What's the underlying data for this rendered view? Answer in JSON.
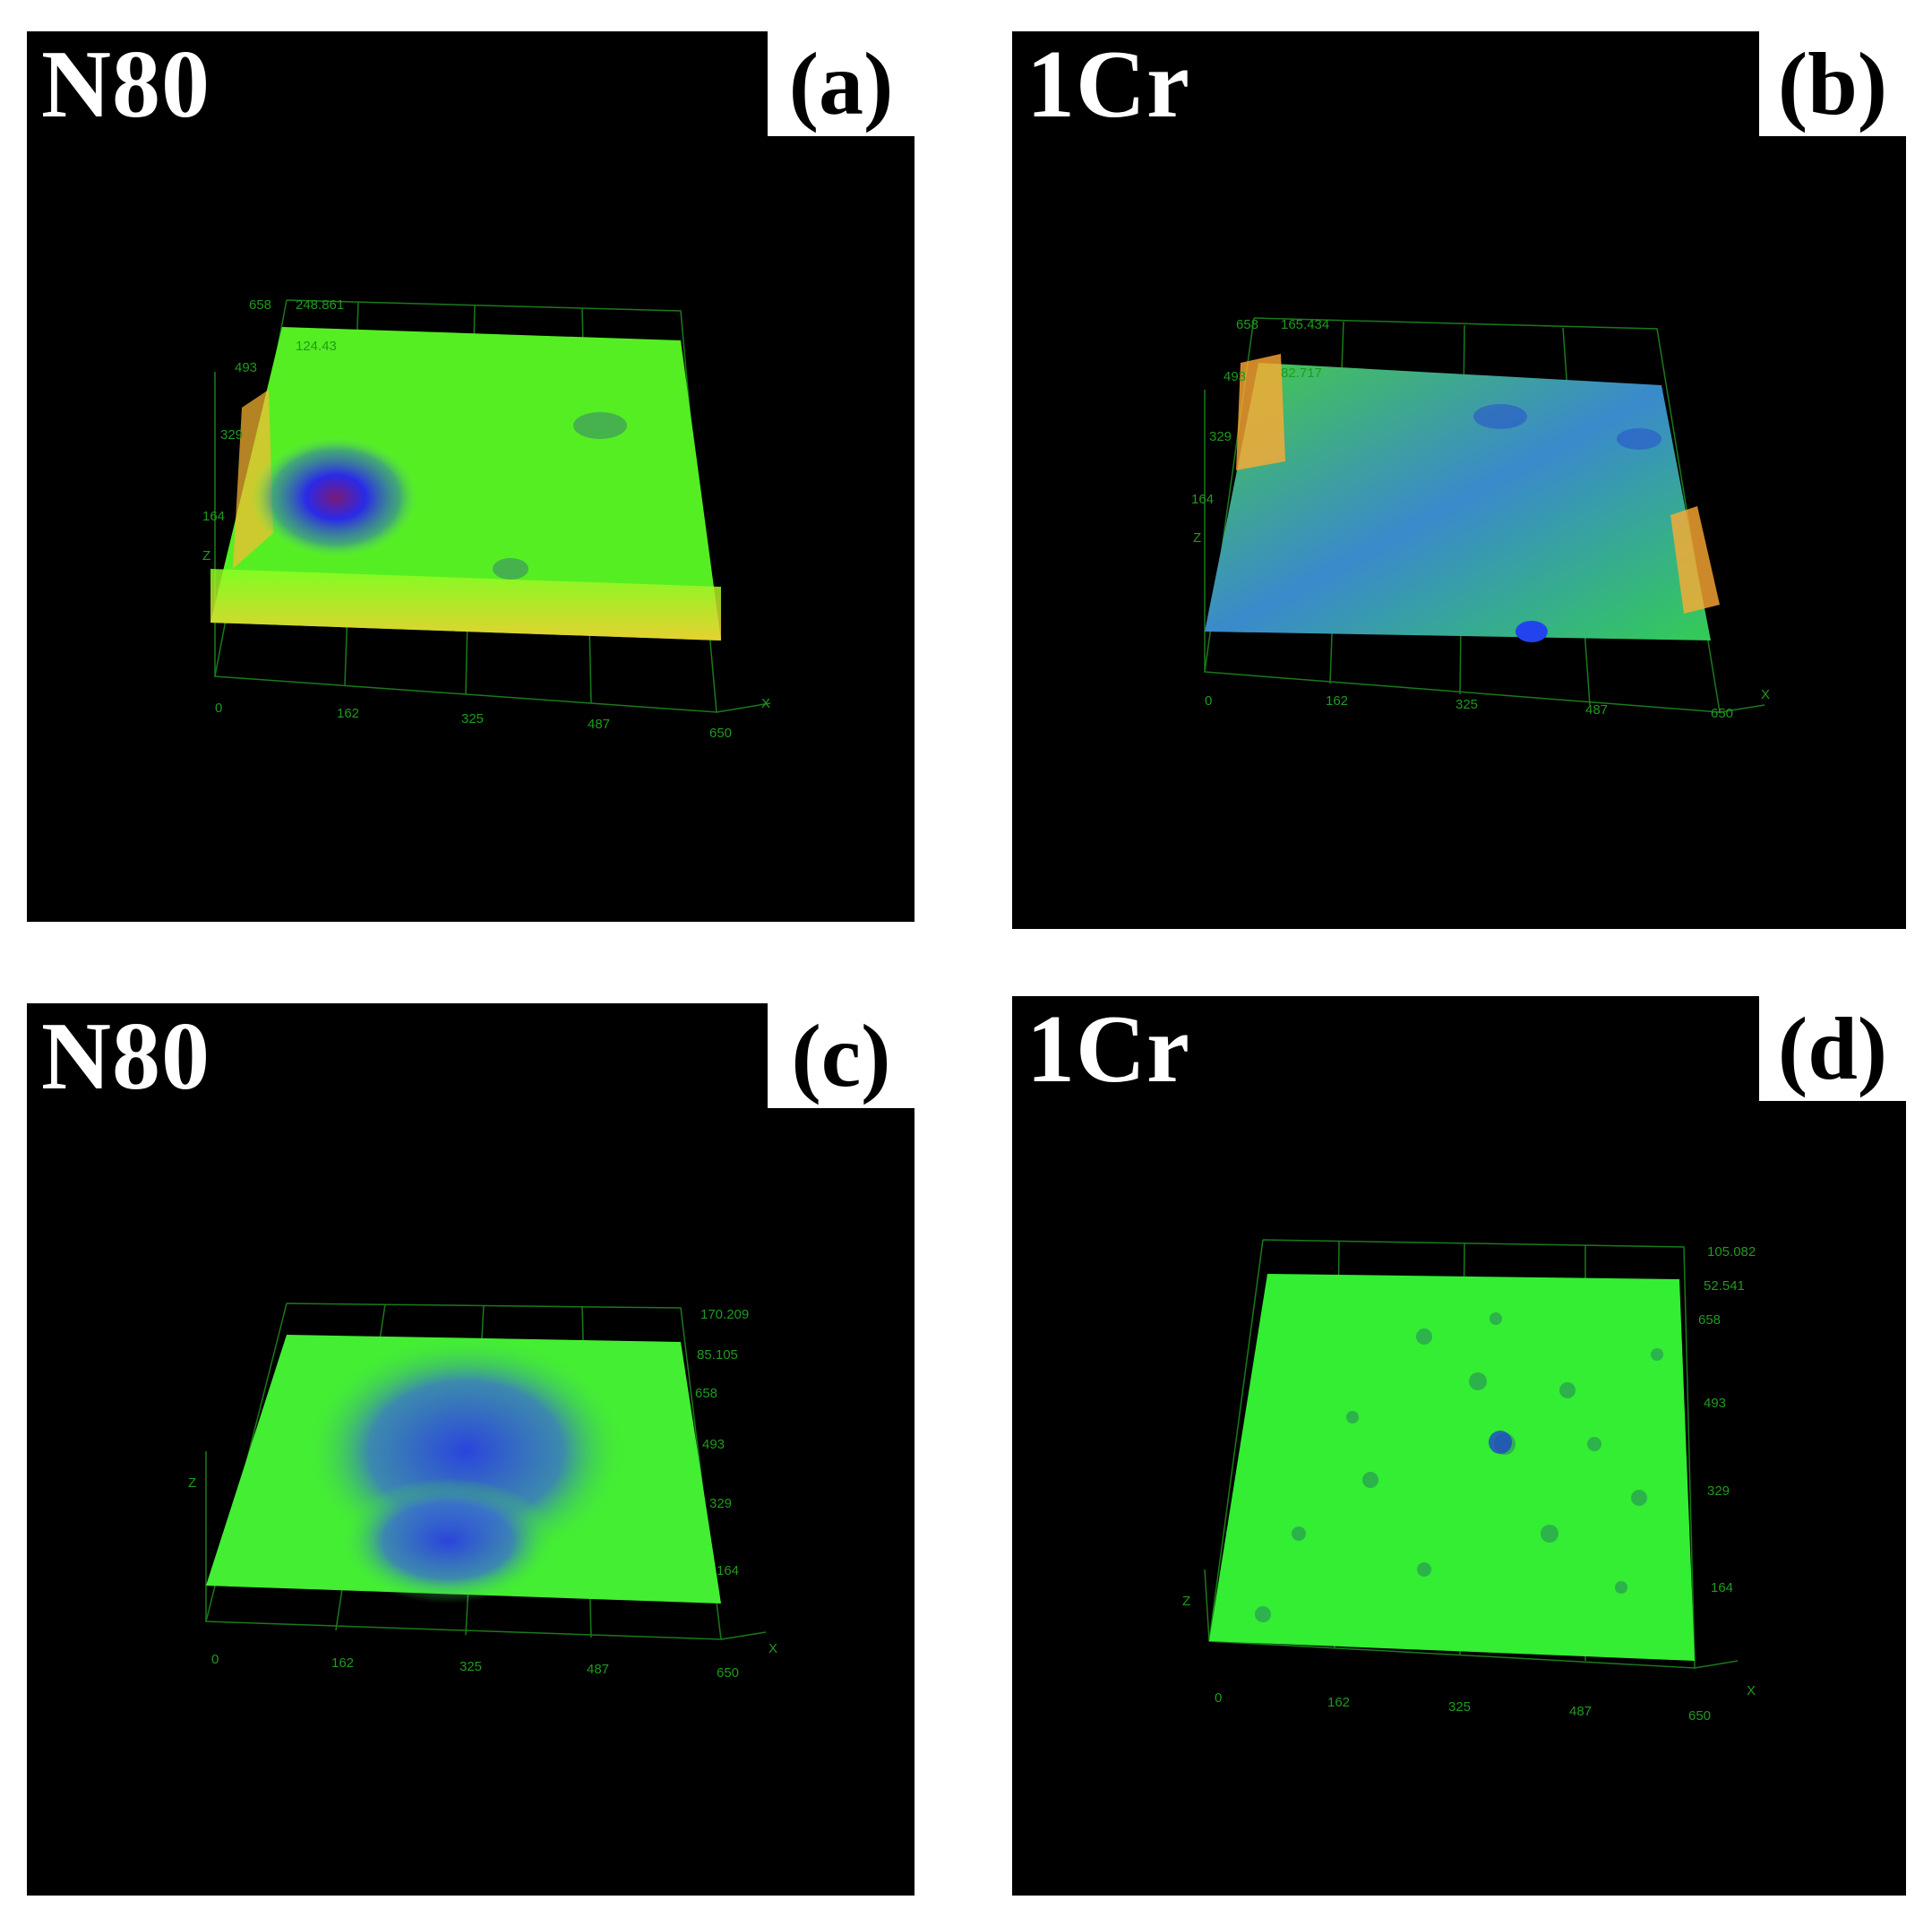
{
  "panels": [
    {
      "id": "a",
      "material": "N80",
      "letter": "(a)",
      "z_max": "248.861",
      "z_mid": "124.43",
      "y_ticks": [
        "658",
        "493",
        "329",
        "164"
      ],
      "x_ticks": [
        "0",
        "162",
        "325",
        "487",
        "650"
      ]
    },
    {
      "id": "b",
      "material": "1Cr",
      "letter": "(b)",
      "z_max": "165.434",
      "z_mid": "82.717",
      "y_ticks": [
        "658",
        "493",
        "329",
        "164"
      ],
      "x_ticks": [
        "0",
        "162",
        "325",
        "487",
        "650"
      ]
    },
    {
      "id": "c",
      "material": "N80",
      "letter": "(c)",
      "z_max": "170.209",
      "z_mid": "85.105",
      "y_ticks": [
        "658",
        "493",
        "329",
        "164"
      ],
      "x_ticks": [
        "0",
        "162",
        "325",
        "487",
        "650"
      ]
    },
    {
      "id": "d",
      "material": "1Cr",
      "letter": "(d)",
      "z_max": "105.082",
      "z_mid": "52.541",
      "y_ticks": [
        "658",
        "493",
        "329",
        "164"
      ],
      "x_ticks": [
        "0",
        "162",
        "325",
        "487",
        "650"
      ]
    }
  ],
  "axes": {
    "x": "X",
    "z": "Z"
  },
  "colors": {
    "background": "#000000",
    "axis": "#1f9a1f",
    "surface_high": "#ffcc33",
    "surface_mid": "#33ff22",
    "surface_low": "#2244ee",
    "pit": "#6a1a8a"
  }
}
